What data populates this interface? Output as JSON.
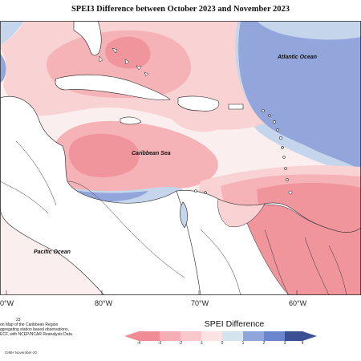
{
  "title": "SPEI3 Difference between October 2023 and November 2023",
  "labels": {
    "atlantic": "Atlantic Ocean",
    "caribbean": "Caribbean Sea",
    "pacific": "Pacific Ocean"
  },
  "longitudes": [
    "0°W",
    "80°W",
    "70°W",
    "60°W"
  ],
  "notes": {
    "line0": "23",
    "line1": "on Map of the Caribbean Region",
    "line2": "ggregating station based observations,",
    "line3": "ECF, with NCEP/NCAR Reanalysis Data."
  },
  "credit": "CIMH November-20",
  "legend": {
    "title": "SPEI Difference",
    "ticks": [
      "-4",
      "-3",
      "-2",
      "-1",
      "0",
      "1",
      "2",
      "3",
      "4"
    ],
    "colors": [
      "#f08c96",
      "#f5aeb4",
      "#f8c8cb",
      "#fbe2e3",
      "#fbf2f2",
      "#d4e4ee",
      "#8ea6dc",
      "#6b85cf",
      "#3b4f93"
    ]
  },
  "colors": {
    "strong_dry": "#f0959c",
    "dry": "#f6b3b7",
    "light_dry": "#f9d2d4",
    "pale": "#fbeeee",
    "wet": "#93a6dc",
    "light_wet": "#c5d5eb",
    "dark_wet": "#3f5497",
    "land": "#ffffff"
  }
}
